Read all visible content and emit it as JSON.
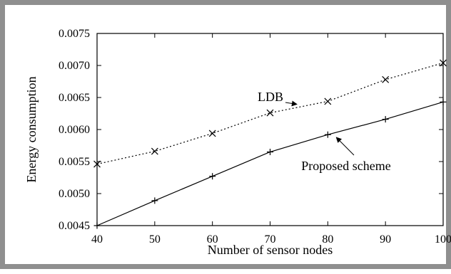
{
  "chart_data": {
    "type": "line",
    "title": "",
    "xlabel": "Number of sensor nodes",
    "ylabel": "Energy consumption",
    "x": [
      40,
      50,
      60,
      70,
      80,
      90,
      100
    ],
    "xlim": [
      40,
      100
    ],
    "ylim": [
      0.0045,
      0.0075
    ],
    "xticks": [
      "40",
      "50",
      "60",
      "70",
      "80",
      "90",
      "100"
    ],
    "yticks": [
      "0.0045",
      "0.0050",
      "0.0055",
      "0.0060",
      "0.0065",
      "0.0070",
      "0.0075"
    ],
    "grid": false,
    "legend": "none",
    "series": [
      {
        "name": "LDB",
        "marker": "x",
        "line_style": "dotted",
        "color": "#000000",
        "values": [
          0.00546,
          0.00566,
          0.00594,
          0.00626,
          0.00644,
          0.00678,
          0.00704
        ]
      },
      {
        "name": "Proposed scheme",
        "marker": "+",
        "line_style": "solid",
        "color": "#000000",
        "values": [
          0.0045,
          0.00489,
          0.00527,
          0.00565,
          0.00592,
          0.00616,
          0.00643
        ]
      }
    ],
    "annotations": [
      {
        "text": "LDB",
        "points_to_series": "LDB",
        "at_x": 75
      },
      {
        "text": "Proposed scheme",
        "points_to_series": "Proposed scheme",
        "at_x": 80.5
      }
    ]
  },
  "colors": {
    "frame_border": "#8f8f8f",
    "plot_ink": "#000000",
    "background": "#ffffff"
  }
}
